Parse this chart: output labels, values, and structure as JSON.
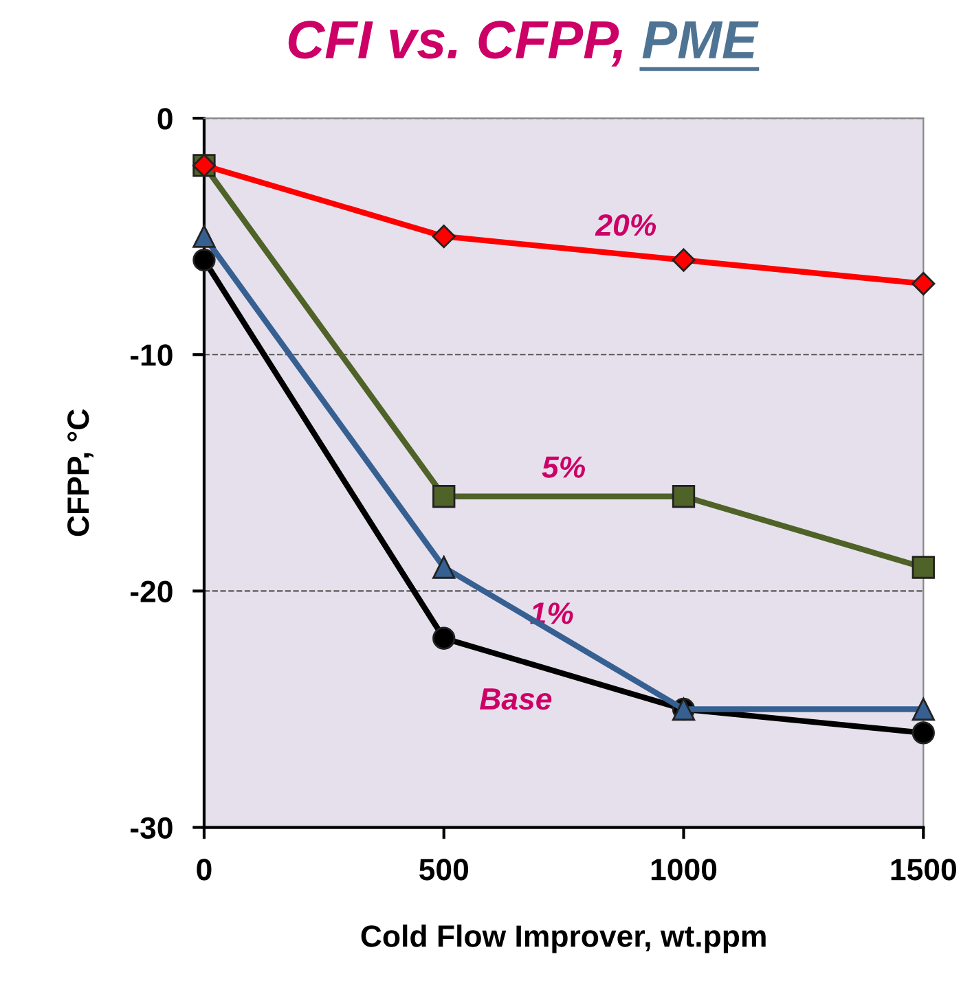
{
  "chart_data": {
    "type": "line",
    "title": "CFI vs. CFPP,",
    "subtitle": "PME",
    "xlabel": "Cold Flow Improver, wt.ppm",
    "ylabel": "CFPP, °C",
    "x": [
      0,
      500,
      1000,
      1500
    ],
    "series": [
      {
        "name": "20%",
        "color": "#ff0000",
        "marker": "diamond",
        "values": [
          -2,
          -5,
          -6,
          -7
        ]
      },
      {
        "name": "5%",
        "color": "#4f6228",
        "marker": "square",
        "values": [
          -2,
          -16,
          -16,
          -19
        ]
      },
      {
        "name": "1%",
        "color": "#376092",
        "marker": "triangle",
        "values": [
          -5,
          -19,
          -25,
          -25
        ]
      },
      {
        "name": "Base",
        "color": "#000000",
        "marker": "circle",
        "values": [
          -6,
          -22,
          -25,
          -26
        ]
      }
    ],
    "xlim": [
      0,
      1500
    ],
    "xticks": [
      0,
      500,
      1000,
      1500
    ],
    "ylim": [
      -30,
      0
    ],
    "yticks": [
      -30,
      -20,
      -10,
      0
    ],
    "grid": "y",
    "legend": false,
    "line_style": "solid"
  }
}
